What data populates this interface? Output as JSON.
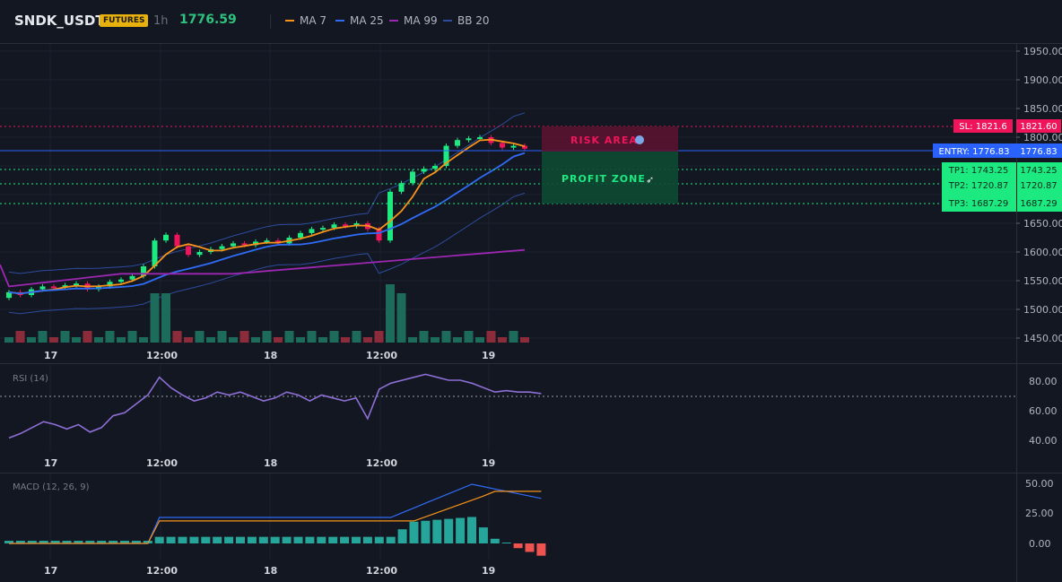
{
  "header": {
    "symbol": "SNDK_USDT",
    "badge": "FUTURES",
    "timeframe": "1h",
    "price": "1776.59",
    "legend": [
      {
        "label": "MA 7",
        "color": "#f7931a"
      },
      {
        "label": "MA 25",
        "color": "#2f6cf6"
      },
      {
        "label": "MA 99",
        "color": "#9c27b0"
      },
      {
        "label": "BB 20",
        "color": "#2c4c9c"
      }
    ]
  },
  "main": {
    "price_ticks": [
      "1950.00",
      "1900.00",
      "1850.00",
      "1800.00",
      "1750.00",
      "1700.00",
      "1650.00",
      "1600.00",
      "1550.00",
      "1500.00",
      "1450.00"
    ],
    "x_ticks": [
      "17",
      "12:00",
      "18",
      "12:00",
      "19"
    ],
    "levels": {
      "sl": {
        "label": "SL: 1821.6",
        "value": "1821.60",
        "color": "#f0155a"
      },
      "entry": {
        "label": "ENTRY: 1776.83",
        "value": "1776.83",
        "color": "#2962ff"
      },
      "tp1": {
        "label": "TP1: 1743.25",
        "value": "1743.25",
        "color": "#1de981"
      },
      "tp2": {
        "label": "TP2: 1720.87",
        "value": "1720.87",
        "color": "#1de981"
      },
      "tp3": {
        "label": "TP3: 1687.29",
        "value": "1687.29",
        "color": "#1de981"
      }
    },
    "risk_zone": "RISK AREA",
    "profit_zone": "PROFIT ZONE"
  },
  "rsi": {
    "title": "RSI (14)",
    "ticks": [
      "80.00",
      "60.00",
      "40.00"
    ],
    "x_ticks": [
      "17",
      "12:00",
      "18",
      "12:00",
      "19"
    ]
  },
  "macd": {
    "title": "MACD (12, 26, 9)",
    "ticks": [
      "50.00",
      "25.00",
      "0.00"
    ],
    "x_ticks": [
      "17",
      "12:00",
      "18",
      "12:00",
      "19"
    ]
  },
  "chart_data": {
    "type": "candlestick",
    "ylim": [
      1440,
      1965
    ],
    "candles_close": [
      1530,
      1525,
      1535,
      1540,
      1538,
      1542,
      1545,
      1535,
      1540,
      1548,
      1552,
      1558,
      1575,
      1620,
      1630,
      1610,
      1595,
      1600,
      1605,
      1610,
      1615,
      1612,
      1618,
      1620,
      1615,
      1625,
      1633,
      1640,
      1642,
      1648,
      1645,
      1650,
      1640,
      1620,
      1705,
      1720,
      1740,
      1745,
      1750,
      1785,
      1795,
      1798,
      1800,
      1790,
      1782,
      1785,
      1780
    ]
  }
}
